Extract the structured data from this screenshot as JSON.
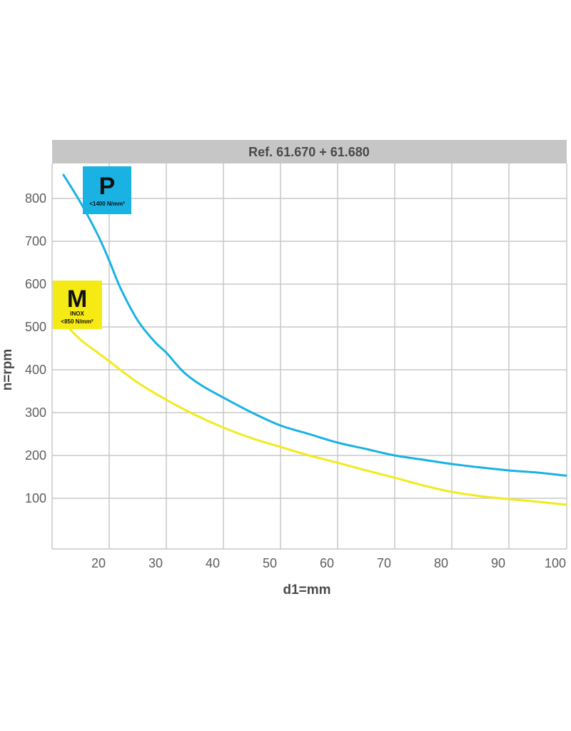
{
  "colors": {
    "header_bg": "#c6c6c6",
    "grid": "#c9c9c9",
    "series_P": "#1ab2e3",
    "series_M": "#f2ea1e",
    "badge_P": "#1ab2e3",
    "badge_M": "#f5ea14"
  },
  "chart_data": {
    "type": "line",
    "title": "Ref. 61.670 + 61.680",
    "xlabel": "d1=mm",
    "ylabel": "n=rpm",
    "xlim": [
      10,
      102
    ],
    "ylim": [
      0,
      890
    ],
    "x_ticks": [
      20,
      30,
      40,
      50,
      60,
      70,
      80,
      90,
      100
    ],
    "y_ticks": [
      100,
      200,
      300,
      400,
      500,
      600,
      700,
      800
    ],
    "grid": true,
    "series": [
      {
        "name": "P",
        "note": "<1400 N/mm²",
        "color": "#1ab2e3",
        "x": [
          12,
          15,
          18,
          20,
          22,
          25,
          28,
          30,
          33,
          36,
          40,
          45,
          50,
          55,
          60,
          65,
          70,
          75,
          80,
          85,
          90,
          95,
          100
        ],
        "y": [
          855,
          790,
          715,
          655,
          590,
          515,
          465,
          440,
          395,
          365,
          335,
          300,
          270,
          250,
          230,
          215,
          200,
          190,
          180,
          172,
          165,
          160,
          153
        ]
      },
      {
        "name": "M",
        "note": "INOX <850 N/mm²",
        "color": "#f2ea1e",
        "x": [
          12,
          15,
          18,
          20,
          25,
          30,
          35,
          40,
          45,
          50,
          55,
          60,
          65,
          70,
          75,
          80,
          85,
          90,
          95,
          100
        ],
        "y": [
          510,
          470,
          440,
          420,
          370,
          330,
          295,
          265,
          240,
          220,
          200,
          183,
          165,
          148,
          130,
          115,
          105,
          98,
          92,
          85
        ]
      }
    ]
  }
}
